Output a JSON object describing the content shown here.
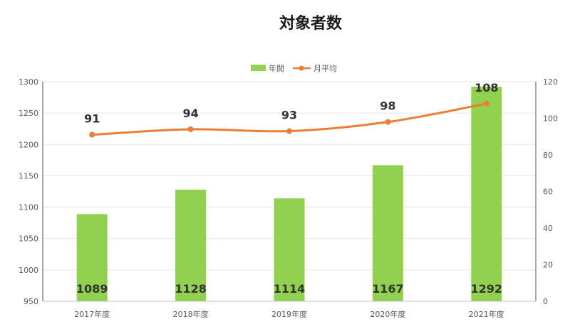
{
  "chart_data": {
    "type": "bar",
    "title": "対象者数",
    "categories": [
      "2017年度",
      "2018年度",
      "2019年度",
      "2020年度",
      "2021年度"
    ],
    "series": [
      {
        "name": "年間",
        "type": "bar",
        "axis": "left",
        "color": "#92d050",
        "values": [
          1089,
          1128,
          1114,
          1167,
          1292
        ]
      },
      {
        "name": "月平均",
        "type": "line",
        "axis": "right",
        "color": "#ed7d31",
        "values": [
          91,
          94,
          93,
          98,
          108
        ]
      }
    ],
    "ylim_left": [
      950,
      1300
    ],
    "yticks_left": [
      "950",
      "1000",
      "1050",
      "1100",
      "1150",
      "1200",
      "1250",
      "1300"
    ],
    "ylim_right": [
      0,
      120
    ],
    "yticks_right": [
      "0",
      "20",
      "40",
      "60",
      "80",
      "100",
      "120"
    ],
    "grid": true,
    "legend_position": "top"
  }
}
